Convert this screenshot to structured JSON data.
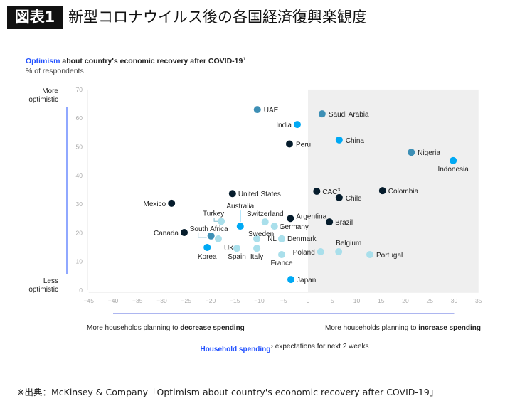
{
  "header": {
    "figure_label": "図表1",
    "title": "新型コロナウイルス後の各国経済復興楽観度"
  },
  "source": "※出典：McKinsey & Company「Optimism about country's economic recovery after COVID-19」",
  "chart_data": {
    "type": "scatter",
    "title_highlight": "Optimism",
    "title_rest": " about country's economic recovery after COVID-19",
    "title_footnote": "1",
    "subtitle": "% of respondents",
    "y_top_label": [
      "More",
      "optimistic"
    ],
    "y_bottom_label": [
      "Less",
      "optimistic"
    ],
    "x_left_label_plain": "More households planning to ",
    "x_left_label_bold": "decrease spending",
    "x_right_label_plain": "More households planning to ",
    "x_right_label_bold": "increase spending",
    "xlabel_highlight": "Household spending",
    "xlabel_footnote": "2",
    "xlabel_rest": " expectations for next 2 weeks",
    "xlim": [
      -45,
      35
    ],
    "ylim": [
      0,
      70
    ],
    "x_ticks": [
      -45,
      -40,
      -35,
      -30,
      -25,
      -20,
      -15,
      -10,
      -5,
      0,
      5,
      10,
      15,
      20,
      25,
      30,
      35
    ],
    "y_ticks": [
      0,
      10,
      20,
      30,
      40,
      50,
      60,
      70
    ],
    "grid": false,
    "shaded_region": {
      "x_from": 0,
      "x_to": 35,
      "color": "#efefef"
    },
    "colors": {
      "dark": "#051c2c",
      "bright": "#00a9f4",
      "medium": "#3d8fb5",
      "light": "#a9dfeb",
      "accent_text": "#2251ff"
    },
    "points": [
      {
        "label": "UAE",
        "x": -10.4,
        "y": 63,
        "color": "medium"
      },
      {
        "label": "Saudi Arabia",
        "x": 2.9,
        "y": 61.5,
        "color": "medium"
      },
      {
        "label": "India",
        "x": -2.2,
        "y": 57.8,
        "color": "bright"
      },
      {
        "label": "Peru",
        "x": -3.8,
        "y": 51,
        "color": "dark"
      },
      {
        "label": "China",
        "x": 6.4,
        "y": 52.4,
        "color": "bright"
      },
      {
        "label": "Nigeria",
        "x": 21.2,
        "y": 48.1,
        "color": "medium"
      },
      {
        "label": "Indonesia",
        "x": 29.8,
        "y": 45.2,
        "color": "bright"
      },
      {
        "label": "United States",
        "x": -15.5,
        "y": 33.7,
        "color": "dark"
      },
      {
        "label": "CAC",
        "footnote": "3",
        "x": 1.8,
        "y": 34.5,
        "color": "dark"
      },
      {
        "label": "Chile",
        "x": 6.4,
        "y": 32.3,
        "color": "dark"
      },
      {
        "label": "Colombia",
        "x": 15.3,
        "y": 34.7,
        "color": "dark"
      },
      {
        "label": "Mexico",
        "x": -28,
        "y": 30.3,
        "color": "dark"
      },
      {
        "label": "Argentina",
        "x": -3.6,
        "y": 25,
        "color": "dark"
      },
      {
        "label": "Brazil",
        "x": 4.4,
        "y": 23.8,
        "color": "dark"
      },
      {
        "label": "Turkey",
        "x": -17.8,
        "y": 24,
        "color": "light"
      },
      {
        "label": "Australia",
        "x": -13.9,
        "y": 22.3,
        "color": "bright"
      },
      {
        "label": "Switzerland",
        "x": -8.8,
        "y": 23.8,
        "color": "light"
      },
      {
        "label": "Germany",
        "x": -6.9,
        "y": 22.3,
        "color": "light"
      },
      {
        "label": "Canada",
        "x": -25.4,
        "y": 20.1,
        "color": "dark"
      },
      {
        "label": "South Africa",
        "x": -19.9,
        "y": 18.9,
        "color": "medium"
      },
      {
        "label": "UK",
        "x": -18.4,
        "y": 17.9,
        "color": "light"
      },
      {
        "label": "Korea",
        "x": -20.7,
        "y": 14.9,
        "color": "bright"
      },
      {
        "label": "Sweden",
        "x": -10.5,
        "y": 17.9,
        "color": "light"
      },
      {
        "label": "NL",
        "x": -5.4,
        "y": 17.9,
        "color": "light"
      },
      {
        "label": "Denmark",
        "x": -5.4,
        "y": 17.9,
        "color": "light"
      },
      {
        "label": "Spain",
        "x": -14.6,
        "y": 14.6,
        "color": "light"
      },
      {
        "label": "Italy",
        "x": -10.5,
        "y": 14.6,
        "color": "light"
      },
      {
        "label": "France",
        "x": -5.4,
        "y": 12.4,
        "color": "light"
      },
      {
        "label": "Poland",
        "x": 2.6,
        "y": 13.4,
        "color": "light"
      },
      {
        "label": "Belgium",
        "x": 6.3,
        "y": 13.4,
        "color": "light"
      },
      {
        "label": "Portugal",
        "x": 12.7,
        "y": 12.4,
        "color": "light"
      },
      {
        "label": "Japan",
        "x": -3.5,
        "y": 3.7,
        "color": "bright"
      }
    ]
  }
}
